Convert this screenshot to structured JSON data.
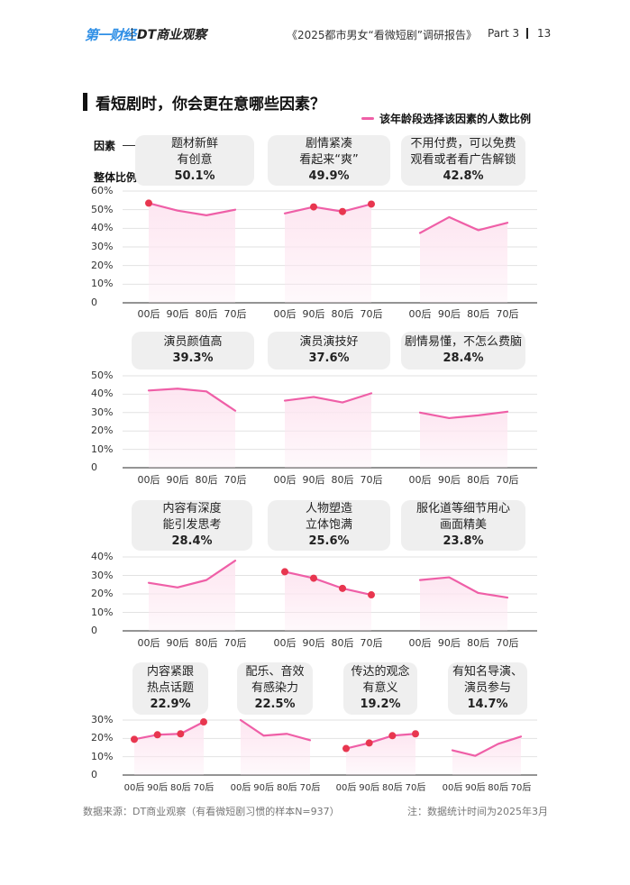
{
  "header": {
    "logo_first": "第一财经",
    "logo_second": "DT商业观察",
    "report_title": "《2025都市男女“看微短剧”调研报告》",
    "part": "Part 3",
    "page_number": "13"
  },
  "title": "看短剧时，你会更在意哪些因素？",
  "legend_label": "该年龄段选择该因素的人数比例",
  "key": {
    "factor": "因素",
    "overall": "整体比例"
  },
  "colors": {
    "line": "#ef5fa7",
    "dot": "#e8364f",
    "fill": "#fde6f1",
    "bubble": "#efefef"
  },
  "footer": {
    "source": "数据来源：DT商业观察（有看微短剧习惯的样本N=937）",
    "note": "注：数据统计时间为2025年3月"
  },
  "chart_data": [
    {
      "type": "line",
      "group": 1,
      "name": "题材新鲜\n有创意",
      "overall": "50.1%",
      "categories": [
        "00后",
        "90后",
        "80后",
        "70后"
      ],
      "values": [
        53.5,
        49.5,
        47,
        50
      ],
      "dots": [
        true,
        false,
        false,
        false
      ],
      "ylim": [
        0,
        60
      ],
      "yticks": [
        "60%",
        "50%",
        "40%",
        "30%",
        "20%",
        "10%",
        "0"
      ]
    },
    {
      "type": "line",
      "group": 1,
      "name": "剧情紧凑\n看起来“爽”",
      "overall": "49.9%",
      "categories": [
        "00后",
        "90后",
        "80后",
        "70后"
      ],
      "values": [
        48,
        51.5,
        49,
        53
      ],
      "dots": [
        false,
        true,
        true,
        true
      ]
    },
    {
      "type": "line",
      "group": 1,
      "name": "不用付费，可以免费\n观看或者看广告解锁",
      "overall": "42.8%",
      "categories": [
        "00后",
        "90后",
        "80后",
        "70后"
      ],
      "values": [
        37.5,
        46,
        39,
        43
      ],
      "dots": [
        false,
        false,
        false,
        false
      ]
    },
    {
      "type": "line",
      "group": 2,
      "name": "演员颜值高",
      "overall": "39.3%",
      "categories": [
        "00后",
        "90后",
        "80后",
        "70后"
      ],
      "values": [
        42,
        43,
        41.5,
        31
      ],
      "dots": [
        false,
        false,
        false,
        false
      ],
      "ylim": [
        0,
        50
      ],
      "yticks": [
        "50%",
        "40%",
        "30%",
        "20%",
        "10%",
        "0"
      ]
    },
    {
      "type": "line",
      "group": 2,
      "name": "演员演技好",
      "overall": "37.6%",
      "categories": [
        "00后",
        "90后",
        "80后",
        "70后"
      ],
      "values": [
        36.5,
        38.5,
        35.5,
        40.5
      ],
      "dots": [
        false,
        false,
        false,
        false
      ]
    },
    {
      "type": "line",
      "group": 2,
      "name": "剧情易懂，不怎么费脑",
      "overall": "28.4%",
      "categories": [
        "00后",
        "90后",
        "80后",
        "70后"
      ],
      "values": [
        30,
        27,
        28.5,
        30.5
      ],
      "dots": [
        false,
        false,
        false,
        false
      ]
    },
    {
      "type": "line",
      "group": 3,
      "name": "内容有深度\n能引发思考",
      "overall": "28.4%",
      "categories": [
        "00后",
        "90后",
        "80后",
        "70后"
      ],
      "values": [
        26,
        23.5,
        27.5,
        38
      ],
      "dots": [
        false,
        false,
        false,
        false
      ],
      "ylim": [
        0,
        40
      ],
      "yticks": [
        "40%",
        "30%",
        "20%",
        "10%",
        "0"
      ]
    },
    {
      "type": "line",
      "group": 3,
      "name": "人物塑造\n立体饱满",
      "overall": "25.6%",
      "categories": [
        "00后",
        "90后",
        "80后",
        "70后"
      ],
      "values": [
        32,
        28.5,
        23,
        19.5
      ],
      "dots": [
        true,
        true,
        true,
        true
      ]
    },
    {
      "type": "line",
      "group": 3,
      "name": "服化道等细节用心\n画面精美",
      "overall": "23.8%",
      "categories": [
        "00后",
        "90后",
        "80后",
        "70后"
      ],
      "values": [
        27.5,
        29,
        20.5,
        18
      ],
      "dots": [
        false,
        false,
        false,
        false
      ]
    },
    {
      "type": "line",
      "group": 4,
      "name": "内容紧跟\n热点话题",
      "overall": "22.9%",
      "categories": [
        "00后",
        "90后",
        "80后",
        "70后"
      ],
      "values": [
        19.5,
        22,
        22.5,
        29
      ],
      "dots": [
        true,
        true,
        true,
        true
      ],
      "ylim": [
        0,
        30
      ],
      "yticks": [
        "30%",
        "20%",
        "10%",
        "0"
      ]
    },
    {
      "type": "line",
      "group": 4,
      "name": "配乐、音效\n有感染力",
      "overall": "22.5%",
      "categories": [
        "00后",
        "90后",
        "80后",
        "70后"
      ],
      "values": [
        30,
        21.5,
        22.5,
        19
      ],
      "dots": [
        false,
        false,
        false,
        false
      ]
    },
    {
      "type": "line",
      "group": 4,
      "name": "传达的观念\n有意义",
      "overall": "19.2%",
      "categories": [
        "00后",
        "90后",
        "80后",
        "70后"
      ],
      "values": [
        14.5,
        17.5,
        21.5,
        22.5
      ],
      "dots": [
        true,
        true,
        true,
        true
      ]
    },
    {
      "type": "line",
      "group": 4,
      "name": "有知名导演、\n演员参与",
      "overall": "14.7%",
      "categories": [
        "00后",
        "90后",
        "80后",
        "70后"
      ],
      "values": [
        13.5,
        10.5,
        17,
        21
      ],
      "dots": [
        false,
        false,
        false,
        false
      ]
    }
  ]
}
